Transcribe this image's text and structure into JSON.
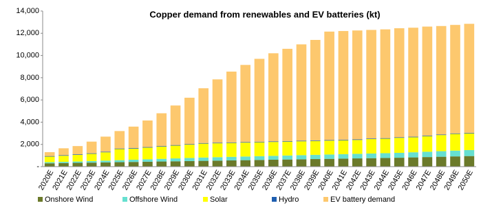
{
  "chart_data": {
    "type": "stacked_bar",
    "title": "Copper demand from renewables and EV batteries (kt)",
    "categories": [
      "2020E",
      "2021E",
      "2022E",
      "2023E",
      "2024E",
      "2025E",
      "2026E",
      "2027E",
      "2028E",
      "2029E",
      "2030E",
      "2031E",
      "2032E",
      "2033E",
      "2034E",
      "2035E",
      "2036E",
      "2037E",
      "2038E",
      "2039E",
      "2040E",
      "2041E",
      "2042E",
      "2043E",
      "2044E",
      "2045E",
      "2046E",
      "2047E",
      "2048E",
      "2049E",
      "2050E"
    ],
    "series": [
      {
        "name": "Onshore Wind",
        "color": "#6b7a2a",
        "values": [
          300,
          320,
          340,
          360,
          380,
          400,
          420,
          440,
          460,
          480,
          500,
          520,
          540,
          560,
          580,
          600,
          620,
          640,
          660,
          680,
          700,
          720,
          740,
          760,
          780,
          800,
          830,
          860,
          890,
          920,
          950
        ]
      },
      {
        "name": "Offshore Wind",
        "color": "#66e0d0",
        "values": [
          100,
          110,
          120,
          140,
          160,
          180,
          200,
          220,
          240,
          260,
          280,
          300,
          310,
          320,
          330,
          340,
          350,
          360,
          370,
          380,
          390,
          400,
          410,
          420,
          430,
          440,
          460,
          480,
          500,
          520,
          540
        ]
      },
      {
        "name": "Solar",
        "color": "#ffff00",
        "values": [
          500,
          550,
          600,
          650,
          750,
          1000,
          1000,
          1050,
          1100,
          1150,
          1200,
          1250,
          1250,
          1250,
          1250,
          1250,
          1250,
          1250,
          1250,
          1250,
          1250,
          1250,
          1250,
          1300,
          1300,
          1350,
          1350,
          1400,
          1450,
          1500,
          1500
        ]
      },
      {
        "name": "Hydro",
        "color": "#1f5fb0",
        "values": [
          50,
          50,
          50,
          50,
          50,
          50,
          50,
          50,
          50,
          50,
          50,
          50,
          50,
          50,
          50,
          50,
          50,
          50,
          50,
          50,
          50,
          50,
          50,
          50,
          50,
          50,
          50,
          50,
          50,
          50,
          50
        ]
      },
      {
        "name": "EV battery demand",
        "color": "#fdc86e",
        "values": [
          350,
          620,
          740,
          1050,
          1360,
          1570,
          1930,
          2390,
          2950,
          3560,
          4170,
          4930,
          5700,
          6370,
          6940,
          7460,
          7930,
          8300,
          8670,
          9040,
          9760,
          9780,
          9800,
          9770,
          9790,
          9810,
          9810,
          9810,
          9760,
          9760,
          9810
        ]
      }
    ],
    "ylim": [
      0,
      14000
    ],
    "yticks": [
      {
        "value": 0,
        "label": "-"
      },
      {
        "value": 2000,
        "label": "2,000"
      },
      {
        "value": 4000,
        "label": "4,000"
      },
      {
        "value": 6000,
        "label": "6,000"
      },
      {
        "value": 8000,
        "label": "8,000"
      },
      {
        "value": 10000,
        "label": "10,000"
      },
      {
        "value": 12000,
        "label": "12,000"
      },
      {
        "value": 14000,
        "label": "14,000"
      }
    ],
    "legend": "bottom"
  }
}
